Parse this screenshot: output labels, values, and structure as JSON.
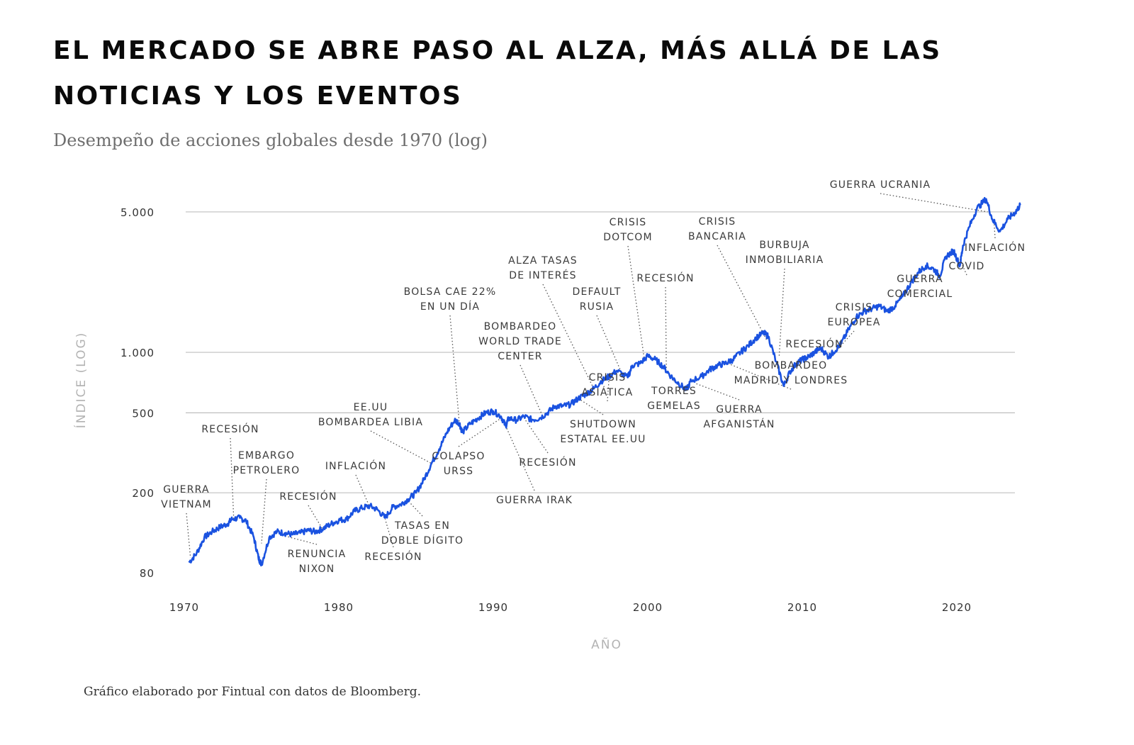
{
  "title": "EL MERCADO SE ABRE PASO AL ALZA, MÁS ALLÁ DE LAS NOTICIAS Y LOS EVENTOS",
  "subtitle": "Desempeño de acciones globales desde 1970 (log)",
  "source": "Gráfico elaborado por Fintual con datos de Bloomberg.",
  "colors": {
    "line": "#1a52e0",
    "grid": "#bfbfbf",
    "leader": "#555555"
  },
  "chart_data": {
    "type": "line",
    "title": "Desempeño de acciones globales desde 1970 (log)",
    "xlabel": "AÑO",
    "ylabel": "ÍNDICE (LOG)",
    "yscale": "log",
    "grid": "horizontal",
    "xlim": [
      1970,
      2025
    ],
    "ylim": [
      80,
      6500
    ],
    "x_ticks": [
      1970,
      1980,
      1990,
      2000,
      2010,
      2020
    ],
    "y_ticks": [
      {
        "value": 80,
        "label": "80"
      },
      {
        "value": 200,
        "label": "200"
      },
      {
        "value": 500,
        "label": "500"
      },
      {
        "value": 1000,
        "label": "1.000"
      },
      {
        "value": 5000,
        "label": "5.000"
      }
    ],
    "series": [
      {
        "x": [
          1970.3,
          1970.8,
          1971.3,
          1971.8,
          1972.3,
          1972.8,
          1973.1,
          1973.6,
          1974.0,
          1974.5,
          1974.8,
          1975.0,
          1975.5,
          1976.0,
          1976.5,
          1977.0,
          1977.5,
          1978.0,
          1978.5,
          1979.0,
          1979.5,
          1980.0,
          1980.5,
          1981.0,
          1981.5,
          1982.0,
          1982.5,
          1983.0,
          1983.5,
          1984.0,
          1984.5,
          1985.0,
          1985.5,
          1986.0,
          1986.5,
          1987.0,
          1987.5,
          1987.8,
          1988.0,
          1988.5,
          1989.0,
          1989.5,
          1990.0,
          1990.5,
          1990.8,
          1991.0,
          1991.5,
          1992.0,
          1992.5,
          1993.0,
          1993.5,
          1994.0,
          1994.5,
          1995.0,
          1995.5,
          1996.0,
          1996.5,
          1997.0,
          1997.5,
          1998.0,
          1998.7,
          1999.0,
          1999.5,
          2000.0,
          2000.5,
          2001.0,
          2001.5,
          2002.0,
          2002.5,
          2002.8,
          2003.5,
          2004.0,
          2004.5,
          2005.0,
          2005.5,
          2006.0,
          2006.5,
          2007.0,
          2007.5,
          2007.8,
          2008.3,
          2008.8,
          2009.2,
          2009.6,
          2010.0,
          2010.4,
          2010.8,
          2011.2,
          2011.7,
          2012.0,
          2012.5,
          2013.0,
          2013.5,
          2014.0,
          2014.5,
          2015.0,
          2015.5,
          2016.0,
          2016.5,
          2017.0,
          2017.5,
          2018.0,
          2018.5,
          2018.9,
          2019.3,
          2019.8,
          2020.2,
          2020.4,
          2020.8,
          2021.3,
          2021.9,
          2022.3,
          2022.8,
          2023.3,
          2023.8,
          2024.1
        ],
        "values": [
          90,
          100,
          120,
          128,
          135,
          140,
          148,
          150,
          145,
          120,
          95,
          88,
          120,
          128,
          126,
          124,
          126,
          130,
          128,
          133,
          140,
          146,
          148,
          162,
          168,
          172,
          165,
          150,
          170,
          175,
          186,
          200,
          232,
          280,
          330,
          400,
          460,
          445,
          400,
          440,
          470,
          500,
          510,
          480,
          430,
          470,
          460,
          480,
          462,
          470,
          500,
          540,
          540,
          550,
          590,
          620,
          660,
          720,
          760,
          810,
          750,
          860,
          880,
          960,
          920,
          850,
          760,
          700,
          650,
          720,
          760,
          820,
          860,
          880,
          920,
          1000,
          1080,
          1180,
          1250,
          1200,
          900,
          680,
          800,
          880,
          920,
          950,
          1000,
          1050,
          950,
          1000,
          1100,
          1300,
          1500,
          1600,
          1650,
          1700,
          1600,
          1700,
          1900,
          2200,
          2500,
          2700,
          2600,
          2400,
          3000,
          3200,
          2700,
          3400,
          4200,
          5200,
          5800,
          4600,
          4000,
          4600,
          5000,
          5400
        ]
      }
    ],
    "annotations": [
      {
        "lines": [
          "GUERRA",
          "VIETNAM"
        ],
        "year": 1970.4,
        "value": 95
      },
      {
        "lines": [
          "RECESIÓN"
        ],
        "year": 1973.2,
        "value": 148
      },
      {
        "lines": [
          "EMBARGO",
          "PETROLERO"
        ],
        "year": 1975.0,
        "value": 112
      },
      {
        "lines": [
          "RENUNCIA",
          "NIXON"
        ],
        "year": 1976.5,
        "value": 122
      },
      {
        "lines": [
          "RECESIÓN"
        ],
        "year": 1979.0,
        "value": 130
      },
      {
        "lines": [
          "INFLACIÓN"
        ],
        "year": 1982.0,
        "value": 170
      },
      {
        "lines": [
          "RECESIÓN"
        ],
        "year": 1983.0,
        "value": 148
      },
      {
        "lines": [
          "TASAS EN",
          "DOBLE DÍGITO"
        ],
        "year": 1984.5,
        "value": 182
      },
      {
        "lines": [
          "EE.UU",
          "BOMBARDEA LIBIA"
        ],
        "year": 1986.0,
        "value": 280
      },
      {
        "lines": [
          "BOLSA CAE 22%",
          "EN UN DÍA"
        ],
        "year": 1987.8,
        "value": 445
      },
      {
        "lines": [
          "COLAPSO",
          "URSS"
        ],
        "year": 1990.5,
        "value": 470
      },
      {
        "lines": [
          "GUERRA IRAK"
        ],
        "year": 1990.8,
        "value": 430
      },
      {
        "lines": [
          "RECESIÓN"
        ],
        "year": 1992.0,
        "value": 470
      },
      {
        "lines": [
          "BOMBARDEO",
          "WORLD TRADE",
          "CENTER"
        ],
        "year": 1993.2,
        "value": 480
      },
      {
        "lines": [
          "SHUTDOWN",
          "ESTATAL EE.UU"
        ],
        "year": 1995.5,
        "value": 590
      },
      {
        "lines": [
          "ALZA TASAS",
          "DE INTERÉS"
        ],
        "year": 1996.5,
        "value": 660
      },
      {
        "lines": [
          "CRISIS",
          "ASIÁTICA"
        ],
        "year": 1997.5,
        "value": 760
      },
      {
        "lines": [
          "DEFAULT",
          "RUSIA"
        ],
        "year": 1998.4,
        "value": 760
      },
      {
        "lines": [
          "CRISIS",
          "DOTCOM"
        ],
        "year": 1999.8,
        "value": 900
      },
      {
        "lines": [
          "RECESIÓN"
        ],
        "year": 2001.2,
        "value": 820
      },
      {
        "lines": [
          "TORRES",
          "GEMELAS"
        ],
        "year": 2001.7,
        "value": 740
      },
      {
        "lines": [
          "GUERRA",
          "AFGANISTÁN"
        ],
        "year": 2003.1,
        "value": 700
      },
      {
        "lines": [
          "BOMBARDEO",
          "MADRID Y LONDRES"
        ],
        "year": 2005.2,
        "value": 880
      },
      {
        "lines": [
          "CRISIS",
          "BANCARIA"
        ],
        "year": 2007.7,
        "value": 1150
      },
      {
        "lines": [
          "BURBUJA",
          "INMOBILIARIA"
        ],
        "year": 2008.5,
        "value": 950
      },
      {
        "lines": [
          "RECESIÓN"
        ],
        "year": 2010.0,
        "value": 920
      },
      {
        "lines": [
          "CRISIS",
          "EUROPEA"
        ],
        "year": 2011.9,
        "value": 960
      },
      {
        "lines": [
          "GUERRA",
          "COMERCIAL"
        ],
        "year": 2018.0,
        "value": 2600
      },
      {
        "lines": [
          "COVID"
        ],
        "year": 2020.2,
        "value": 2900
      },
      {
        "lines": [
          "GUERRA UCRANIA"
        ],
        "year": 2022.0,
        "value": 5000
      },
      {
        "lines": [
          "INFLACIÓN"
        ],
        "year": 2022.4,
        "value": 4600
      }
    ]
  }
}
